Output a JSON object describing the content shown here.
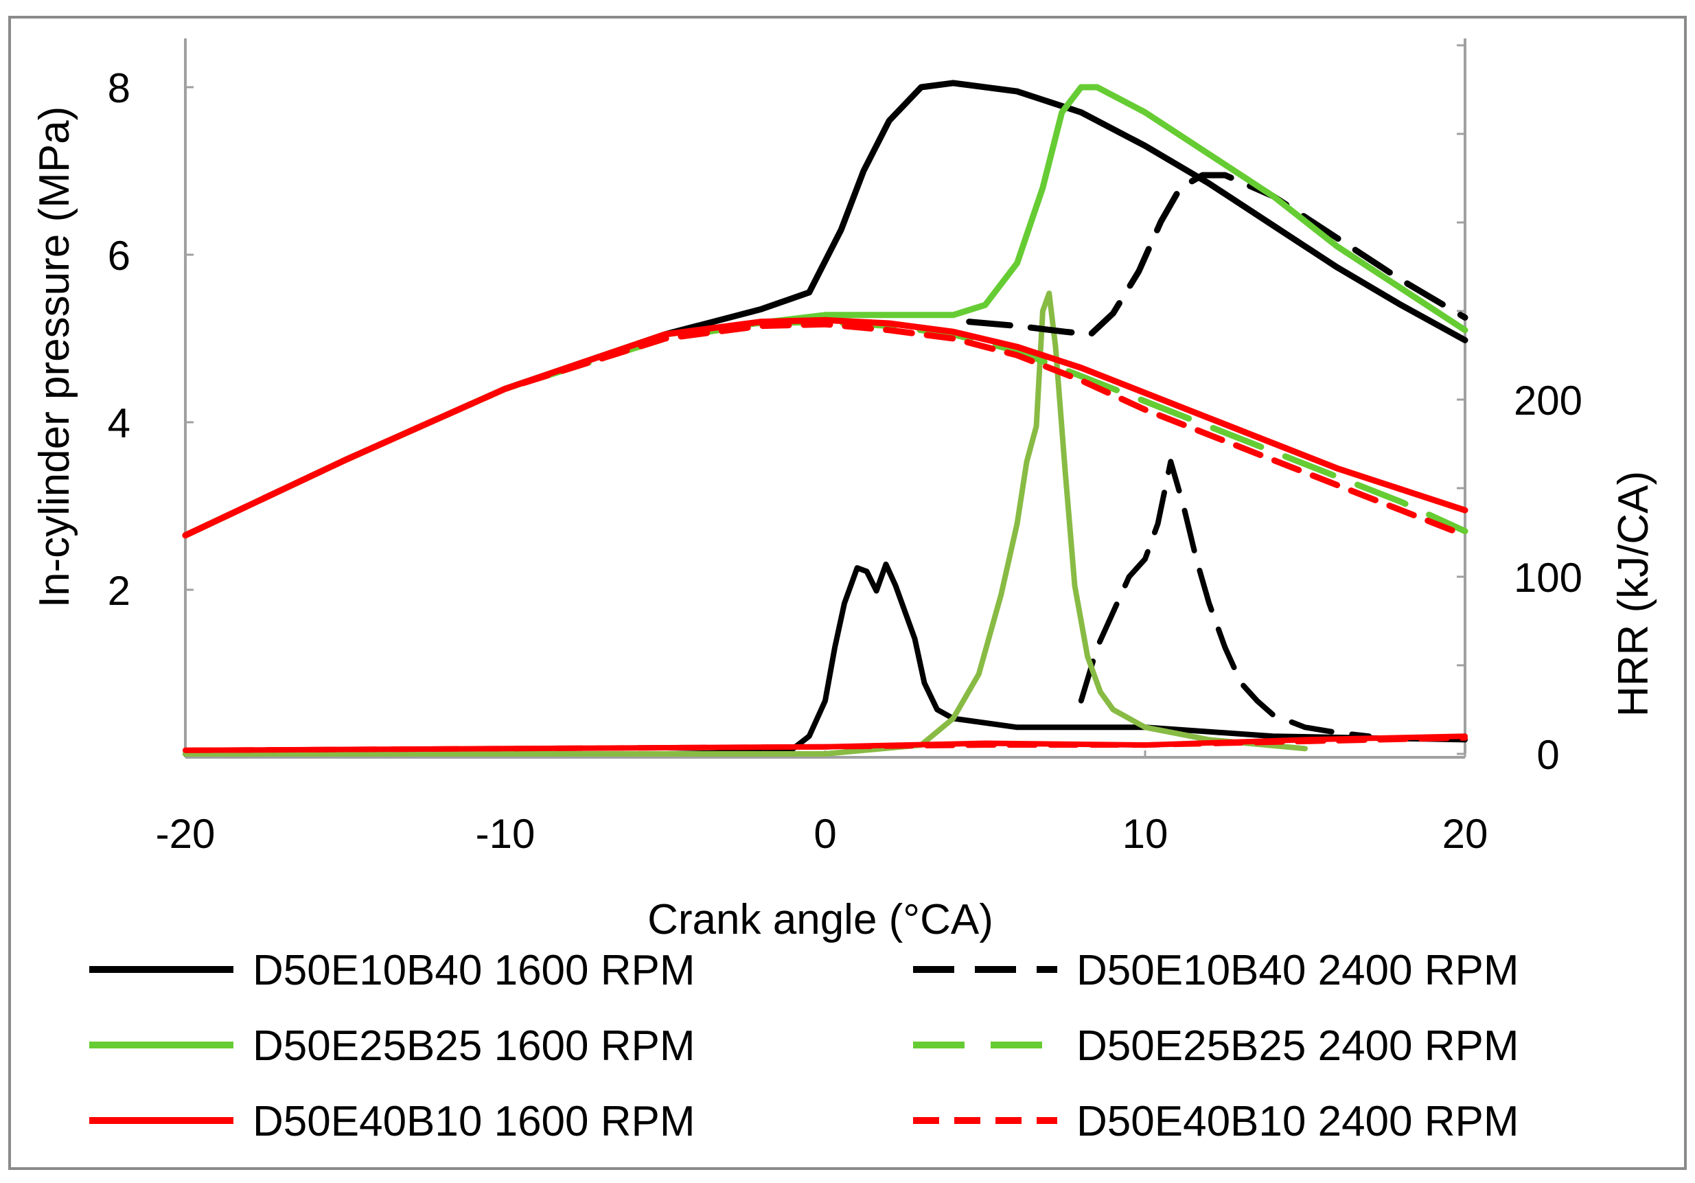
{
  "chart_data": {
    "type": "line",
    "title": "",
    "xlabel": "Crank angle (°CA)",
    "ylabel": "In-cylinder pressure (MPa)",
    "y2label": "HRR (kJ/CA)",
    "xlim": [
      -20,
      20
    ],
    "ylim": [
      0,
      8.5
    ],
    "y2lim": [
      0,
      400
    ],
    "x_ticks": [
      -20,
      -10,
      0,
      10,
      20
    ],
    "x_tick_labels": [
      "-20",
      "-10",
      "0",
      "10",
      "20"
    ],
    "y_ticks": [
      2,
      4,
      6,
      8
    ],
    "y_tick_labels": [
      "2",
      "4",
      "6",
      "8"
    ],
    "y2_ticks": [
      0,
      100,
      200
    ],
    "y2_tick_labels": [
      "0",
      "100",
      "200"
    ],
    "legend_position": "bottom",
    "colors": {
      "black": "#000000",
      "green": "#66cc33",
      "red": "#ff0000",
      "hrr_green": "#88bb44",
      "axis": "#a0a0a0"
    },
    "series": [
      {
        "name": "D50E10B40 1600 RPM",
        "axis": "pressure",
        "color": "#000000",
        "dash": "solid",
        "x": [
          -20,
          -15,
          -10,
          -5,
          -2,
          -0.5,
          0.5,
          1.2,
          2,
          3,
          4,
          6,
          8,
          10,
          12,
          14,
          16,
          18,
          20
        ],
        "y": [
          2.65,
          3.55,
          4.4,
          5.05,
          5.35,
          5.55,
          6.3,
          7.0,
          7.6,
          8.0,
          8.05,
          7.95,
          7.7,
          7.3,
          6.85,
          6.35,
          5.85,
          5.4,
          4.98
        ]
      },
      {
        "name": "D50E10B40 2400 RPM",
        "axis": "pressure",
        "color": "#000000",
        "dash": "dash",
        "x": [
          4.5,
          6,
          7.5,
          8.3,
          9,
          9.8,
          10.5,
          11.1,
          11.8,
          12.5,
          14,
          16,
          18,
          20
        ],
        "y": [
          5.2,
          5.15,
          5.08,
          5.05,
          5.3,
          5.8,
          6.4,
          6.8,
          6.95,
          6.95,
          6.7,
          6.2,
          5.7,
          5.25
        ]
      },
      {
        "name": "D50E25B25 1600 RPM",
        "axis": "pressure",
        "color": "#66cc33",
        "dash": "solid",
        "x": [
          -20,
          -15,
          -10,
          -5,
          0,
          2,
          4,
          5,
          6,
          6.8,
          7.4,
          8,
          8.5,
          10,
          12,
          14,
          16,
          18,
          20
        ],
        "y": [
          2.65,
          3.55,
          4.4,
          5.05,
          5.28,
          5.28,
          5.28,
          5.4,
          5.9,
          6.8,
          7.7,
          8.0,
          8.0,
          7.7,
          7.2,
          6.7,
          6.1,
          5.6,
          5.1
        ]
      },
      {
        "name": "D50E25B25 2400 RPM",
        "axis": "pressure",
        "color": "#66cc33",
        "dash": "longdash",
        "x": [
          -20,
          -15,
          -10,
          -5,
          -2,
          0,
          2,
          4,
          6,
          8,
          10,
          12,
          14,
          16,
          18,
          20
        ],
        "y": [
          2.65,
          3.55,
          4.4,
          5.0,
          5.18,
          5.2,
          5.15,
          5.05,
          4.85,
          4.55,
          4.25,
          3.95,
          3.65,
          3.35,
          3.05,
          2.7
        ]
      },
      {
        "name": "D50E40B10 1600 RPM",
        "axis": "pressure",
        "color": "#ff0000",
        "dash": "solid",
        "x": [
          -20,
          -15,
          -10,
          -5,
          -2,
          0,
          2,
          4,
          6,
          8,
          10,
          12,
          14,
          16,
          18,
          20
        ],
        "y": [
          2.65,
          3.55,
          4.4,
          5.05,
          5.2,
          5.22,
          5.18,
          5.08,
          4.9,
          4.65,
          4.35,
          4.05,
          3.75,
          3.45,
          3.2,
          2.95
        ]
      },
      {
        "name": "D50E40B10 2400 RPM",
        "axis": "pressure",
        "color": "#ff0000",
        "dash": "shortdash",
        "x": [
          -20,
          -15,
          -10,
          -5,
          -2,
          0,
          2,
          4,
          6,
          8,
          10,
          12,
          14,
          16,
          18,
          20
        ],
        "y": [
          2.65,
          3.55,
          4.4,
          5.0,
          5.15,
          5.17,
          5.1,
          5.0,
          4.8,
          4.5,
          4.15,
          3.85,
          3.55,
          3.25,
          2.95,
          2.65
        ]
      },
      {
        "name": "D50E10B40 1600 RPM HRR",
        "axis": "hrr",
        "color": "#000000",
        "dash": "solid",
        "x": [
          -20,
          -5,
          -2,
          -1,
          -0.5,
          0,
          0.3,
          0.6,
          1.0,
          1.3,
          1.6,
          1.9,
          2.2,
          2.5,
          2.8,
          3.1,
          3.5,
          4,
          6,
          10,
          14,
          20
        ],
        "y": [
          0,
          0,
          1,
          3,
          10,
          30,
          60,
          85,
          105,
          103,
          92,
          107,
          95,
          80,
          65,
          40,
          25,
          20,
          15,
          15,
          10,
          8
        ]
      },
      {
        "name": "D50E10B40 2400 RPM HRR",
        "axis": "hrr",
        "color": "#000000",
        "dash": "dash",
        "x": [
          8,
          8.5,
          9,
          9.5,
          10,
          10.4,
          10.8,
          11.2,
          11.6,
          12,
          12.5,
          13,
          13.5,
          14,
          15,
          16,
          17
        ],
        "y": [
          30,
          60,
          80,
          100,
          110,
          130,
          165,
          140,
          110,
          85,
          60,
          40,
          30,
          22,
          15,
          12,
          10
        ]
      },
      {
        "name": "D50E25B25 1600 RPM HRR",
        "axis": "hrr",
        "color": "#88bb44",
        "dash": "solid",
        "x": [
          -20,
          0,
          3,
          4,
          4.8,
          5.5,
          6,
          6.3,
          6.6,
          6.8,
          7.0,
          7.2,
          7.5,
          7.8,
          8.2,
          8.6,
          9,
          10,
          12,
          15
        ],
        "y": [
          0,
          0,
          5,
          20,
          45,
          90,
          130,
          165,
          185,
          250,
          260,
          230,
          160,
          95,
          55,
          35,
          25,
          15,
          8,
          3
        ]
      },
      {
        "name": "D50E40B10 1600 RPM HRR",
        "axis": "hrr",
        "color": "#ff0000",
        "dash": "solid",
        "x": [
          -20,
          -10,
          0,
          5,
          10,
          15,
          20
        ],
        "y": [
          2,
          3,
          4,
          6,
          5,
          8,
          10
        ]
      },
      {
        "name": "D50E40B10 2400 RPM HRR",
        "axis": "hrr",
        "color": "#ff0000",
        "dash": "shortdash",
        "x": [
          -20,
          -10,
          0,
          5,
          10,
          15,
          20
        ],
        "y": [
          2,
          3,
          4,
          5,
          5,
          7,
          9
        ]
      }
    ],
    "legend": [
      {
        "label": "D50E10B40 1600 RPM",
        "color": "#000000",
        "dash": "solid"
      },
      {
        "label": "D50E10B40 2400 RPM",
        "color": "#000000",
        "dash": "dash"
      },
      {
        "label": "D50E25B25 1600 RPM",
        "color": "#66cc33",
        "dash": "solid"
      },
      {
        "label": "D50E25B25 2400 RPM",
        "color": "#66cc33",
        "dash": "longdash"
      },
      {
        "label": "D50E40B10 1600 RPM",
        "color": "#ff0000",
        "dash": "solid"
      },
      {
        "label": "D50E40B10 2400 RPM",
        "color": "#ff0000",
        "dash": "shortdash"
      }
    ]
  }
}
